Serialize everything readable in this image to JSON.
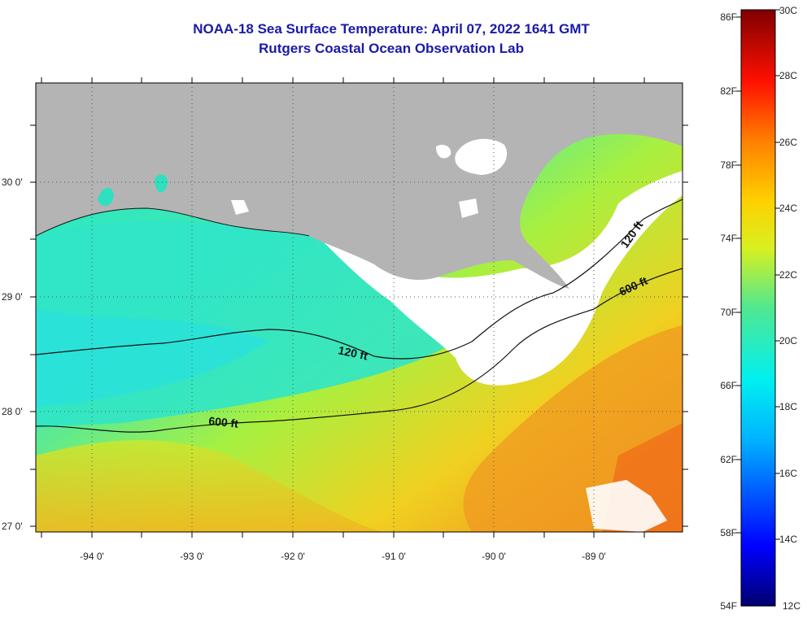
{
  "title": {
    "line1": "NOAA-18 Sea Surface Temperature:  April 07, 2022 1641 GMT",
    "line2": "Rutgers Coastal Ocean Observation Lab"
  },
  "map": {
    "lon_labels": [
      "-94 0'",
      "-93 0'",
      "-92 0'",
      "-91 0'",
      "-90 0'",
      "-89 0'"
    ],
    "lat_labels": [
      "30 0'",
      "29 0'",
      "28 0'",
      "27 0'"
    ],
    "contour_labels": [
      "120 ft",
      "600 ft",
      "120 ft",
      "600 ft"
    ],
    "colors": {
      "land": "#b4b4b4",
      "cloud": "#ffffff",
      "shelf_water": "#2ee6c8",
      "warm_water": "#f0c020"
    }
  },
  "colorbar": {
    "f_labels": [
      "86F",
      "82F",
      "78F",
      "74F",
      "70F",
      "66F",
      "62F",
      "58F",
      "54F"
    ],
    "c_labels": [
      "30C",
      "28C",
      "26C",
      "24C",
      "22C",
      "20C",
      "18C",
      "16C",
      "14C",
      "12C"
    ],
    "range_c": [
      12,
      30
    ],
    "range_f": [
      54,
      86
    ]
  }
}
